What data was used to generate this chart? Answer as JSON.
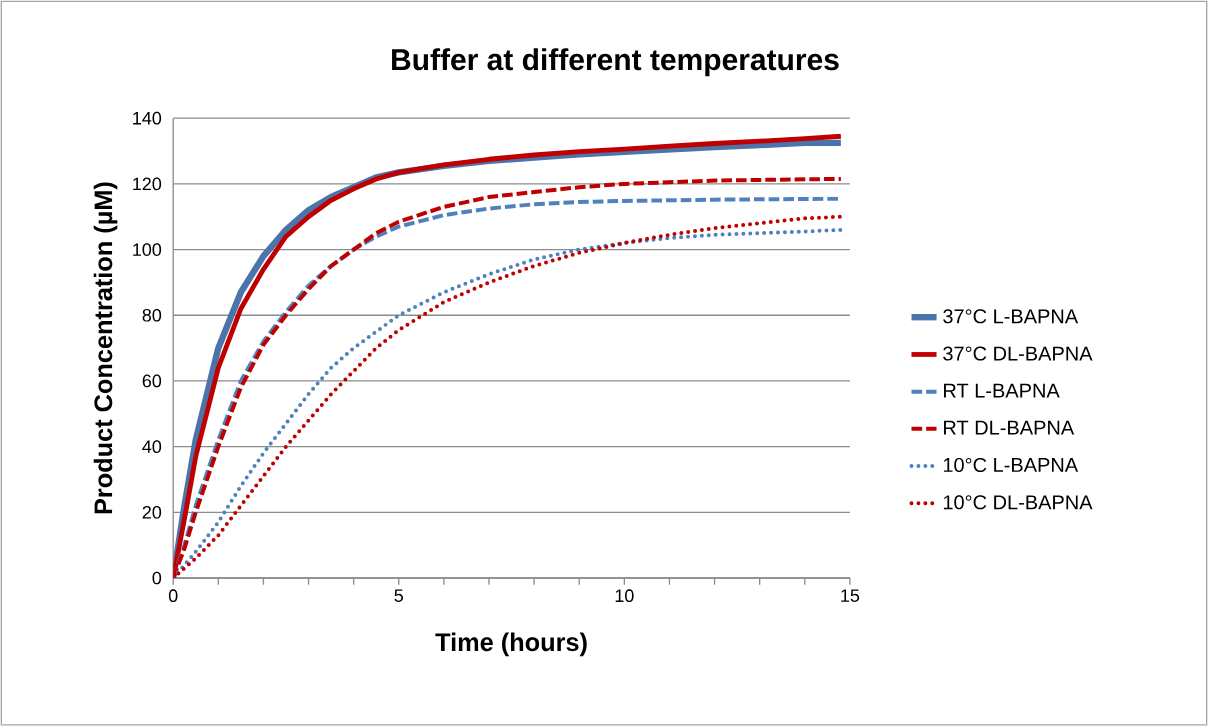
{
  "chart_data": {
    "type": "line",
    "title": "Buffer at different temperatures",
    "xlabel": "Time (hours)",
    "ylabel": "Product Concentration (µM)",
    "xlim": [
      0,
      15
    ],
    "xticks": [
      0,
      5,
      10,
      15
    ],
    "ylim": [
      0,
      140
    ],
    "yticks": [
      0,
      20,
      40,
      60,
      80,
      100,
      120,
      140
    ],
    "grid": "y",
    "legend": "right",
    "marker": "none",
    "x": [
      0,
      0.25,
      0.5,
      1,
      1.5,
      2,
      2.5,
      3,
      3.5,
      4,
      4.5,
      5,
      6,
      7,
      8,
      9,
      10,
      11,
      12,
      13,
      14,
      14.8
    ],
    "series": [
      {
        "name": "37°C L-BAPNA",
        "color": "#4a74aa",
        "line_style": "solid",
        "values": [
          0,
          22,
          42,
          70,
          87,
          98,
          106,
          112,
          116,
          119,
          122,
          123.5,
          125.5,
          127,
          128,
          129,
          129.8,
          130.5,
          131.2,
          131.8,
          132.5,
          132.5
        ]
      },
      {
        "name": "37°C DL-BAPNA",
        "color": "#c00000",
        "line_style": "solid",
        "values": [
          0,
          18,
          37,
          64,
          82,
          94,
          104,
          110,
          115,
          118.5,
          121.5,
          123.5,
          125.8,
          127.5,
          128.8,
          129.8,
          130.6,
          131.5,
          132.3,
          133,
          133.8,
          134.5
        ]
      },
      {
        "name": "RT L-BAPNA",
        "color": "#4f81bd",
        "line_style": "dashed",
        "values": [
          0,
          10,
          22,
          42,
          60,
          72,
          81,
          89,
          95,
          100,
          104,
          107,
          110.5,
          112.5,
          113.8,
          114.5,
          114.8,
          115,
          115.2,
          115.3,
          115.4,
          115.5
        ]
      },
      {
        "name": "RT DL-BAPNA",
        "color": "#c00000",
        "line_style": "dashed",
        "values": [
          0,
          9,
          20,
          40,
          58,
          71,
          80,
          88,
          95,
          100,
          105,
          108.5,
          113,
          116,
          117.5,
          119,
          120,
          120.5,
          121,
          121.2,
          121.4,
          121.5
        ]
      },
      {
        "name": "10°C L-BAPNA",
        "color": "#4f81bd",
        "line_style": "dotted",
        "values": [
          0,
          4,
          8,
          17,
          28,
          38,
          47,
          56,
          64,
          70,
          75,
          80,
          87,
          92.5,
          97,
          100,
          102,
          103.5,
          104.5,
          105,
          105.5,
          106
        ]
      },
      {
        "name": "10°C DL-BAPNA",
        "color": "#c00000",
        "line_style": "dotted",
        "values": [
          0,
          3,
          6,
          13,
          22,
          31,
          40,
          48,
          56,
          63,
          70,
          75.5,
          84,
          90,
          95,
          99,
          102,
          104.5,
          106.5,
          108,
          109.5,
          110
        ]
      }
    ]
  }
}
